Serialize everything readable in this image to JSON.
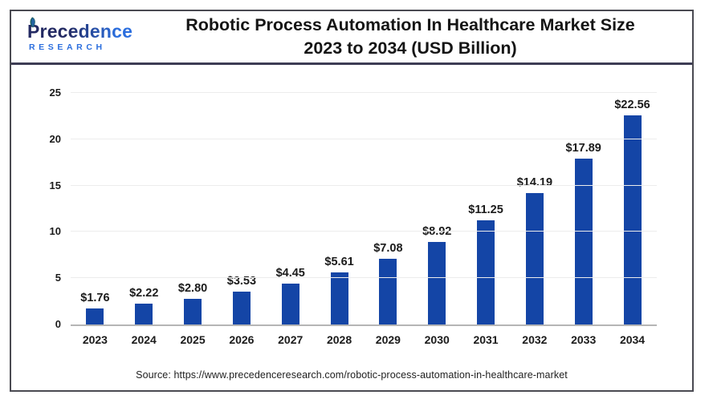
{
  "logo": {
    "name": "Precedence",
    "subtitle": "RESEARCH"
  },
  "header": {
    "title_line1": "Robotic Process Automation In Healthcare Market Size",
    "title_line2": "2023 to 2034 (USD Billion)"
  },
  "chart_data": {
    "type": "bar",
    "title": "Robotic Process Automation In Healthcare Market Size 2023 to 2034 (USD Billion)",
    "unit": "USD Billion",
    "categories": [
      "2023",
      "2024",
      "2025",
      "2026",
      "2027",
      "2028",
      "2029",
      "2030",
      "2031",
      "2032",
      "2033",
      "2034"
    ],
    "values": [
      1.76,
      2.22,
      2.8,
      3.53,
      4.45,
      5.61,
      7.08,
      8.92,
      11.25,
      14.19,
      17.89,
      22.56
    ],
    "value_labels": [
      "$1.76",
      "$2.22",
      "$2.80",
      "$3.53",
      "$4.45",
      "$5.61",
      "$7.08",
      "$8.92",
      "$11.25",
      "$14.19",
      "$17.89",
      "$22.56"
    ],
    "xlabel": "",
    "ylabel": "",
    "ylim": [
      0,
      25
    ],
    "yticks": [
      0,
      5,
      10,
      15,
      20,
      25
    ],
    "grid": true,
    "legend": "none",
    "bar_color": "#1445a6"
  },
  "footer": {
    "source": "Source: https://www.precedenceresearch.com/robotic-process-automation-in-healthcare-market"
  },
  "colors": {
    "bar": "#1445a6",
    "header_divider": "#3d3c54",
    "outer_border": "#4a4a52",
    "gridline": "#ececec",
    "baseline": "#b5b5b5",
    "logo_navy": "#232a63",
    "logo_blue": "#2b6ede"
  }
}
